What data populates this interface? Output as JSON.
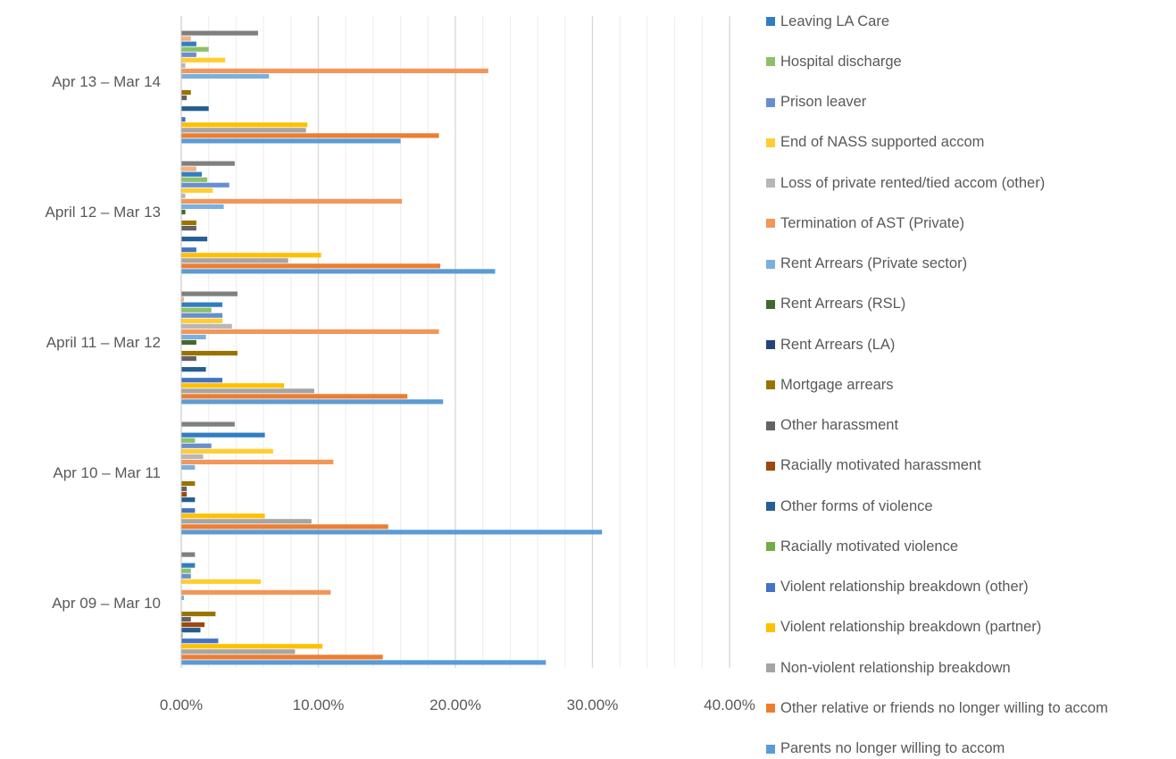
{
  "chart_data": {
    "type": "bar",
    "orientation": "horizontal",
    "title": "",
    "xlabel": "",
    "ylabel": "",
    "xlim": [
      0,
      0.4
    ],
    "x_ticks": [
      "0.00%",
      "10.00%",
      "20.00%",
      "30.00%",
      "40.00%"
    ],
    "grid": true,
    "legend_position": "right",
    "categories": [
      "Apr 09 – Mar 10",
      "Apr 10 – Mar 11",
      "April 11 – Mar 12",
      "April 12 – Mar 13",
      "Apr 13 – Mar 14"
    ],
    "series": [
      {
        "name": "Parents no longer willing to accom",
        "color": "#5B9BD5",
        "values": [
          0.266,
          0.307,
          0.191,
          0.229,
          0.16
        ]
      },
      {
        "name": "Other relative or friends no longer willing to accom",
        "color": "#ED7D31",
        "values": [
          0.147,
          0.151,
          0.165,
          0.189,
          0.188
        ]
      },
      {
        "name": "Non-violent relationship breakdown",
        "color": "#A5A5A5",
        "values": [
          0.083,
          0.095,
          0.097,
          0.078,
          0.091
        ]
      },
      {
        "name": "Violent relationship breakdown (partner)",
        "color": "#FFC000",
        "values": [
          0.103,
          0.061,
          0.075,
          0.102,
          0.092
        ]
      },
      {
        "name": "Violent relationship breakdown (other)",
        "color": "#4472C4",
        "values": [
          0.027,
          0.01,
          0.03,
          0.011,
          0.003
        ]
      },
      {
        "name": "Racially motivated violence",
        "color": "#70AD47",
        "values": [
          0.001,
          0.0,
          0.0,
          0.0,
          0.0
        ]
      },
      {
        "name": "Other forms of violence",
        "color": "#255E91",
        "values": [
          0.014,
          0.01,
          0.018,
          0.019,
          0.02
        ]
      },
      {
        "name": "Racially motivated harassment",
        "color": "#9E480E",
        "values": [
          0.017,
          0.004,
          0.0,
          0.0,
          0.0
        ]
      },
      {
        "name": "Other harassment",
        "color": "#636363",
        "values": [
          0.007,
          0.004,
          0.011,
          0.011,
          0.004
        ]
      },
      {
        "name": "Mortgage arrears",
        "color": "#997300",
        "values": [
          0.025,
          0.01,
          0.041,
          0.011,
          0.007
        ]
      },
      {
        "name": "Rent Arrears (LA)",
        "color": "#264478",
        "values": [
          0.0,
          0.0,
          0.0,
          0.0,
          0.0
        ]
      },
      {
        "name": "Rent Arrears (RSL)",
        "color": "#43682B",
        "values": [
          0.0,
          0.0,
          0.011,
          0.003,
          0.0
        ]
      },
      {
        "name": "Rent Arrears (Private sector)",
        "color": "#7CAFDD",
        "values": [
          0.002,
          0.01,
          0.018,
          0.031,
          0.064
        ]
      },
      {
        "name": "Termination of AST (Private)",
        "color": "#F1975A",
        "values": [
          0.109,
          0.111,
          0.188,
          0.161,
          0.224
        ]
      },
      {
        "name": "Loss of private rented/tied accom (other)",
        "color": "#B7B7B7",
        "values": [
          0.0,
          0.016,
          0.037,
          0.003,
          0.003
        ]
      },
      {
        "name": "End of NASS supported accom",
        "color": "#FFCD33",
        "values": [
          0.058,
          0.067,
          0.03,
          0.023,
          0.032
        ]
      },
      {
        "name": "Prison leaver",
        "color": "#698ED0",
        "values": [
          0.007,
          0.022,
          0.03,
          0.035,
          0.011
        ]
      },
      {
        "name": "Hospital discharge",
        "color": "#8CC168",
        "values": [
          0.007,
          0.01,
          0.022,
          0.019,
          0.02
        ]
      },
      {
        "name": "Leaving LA Care",
        "color": "#327DC2",
        "values": [
          0.01,
          0.061,
          0.03,
          0.015,
          0.011
        ]
      },
      {
        "name": "",
        "color": "#F4B183",
        "values": [
          0.0,
          0.0,
          0.002,
          0.011,
          0.007
        ]
      },
      {
        "name": "",
        "color": "#7F7F7F",
        "values": [
          0.01,
          0.039,
          0.041,
          0.039,
          0.056
        ]
      }
    ]
  }
}
